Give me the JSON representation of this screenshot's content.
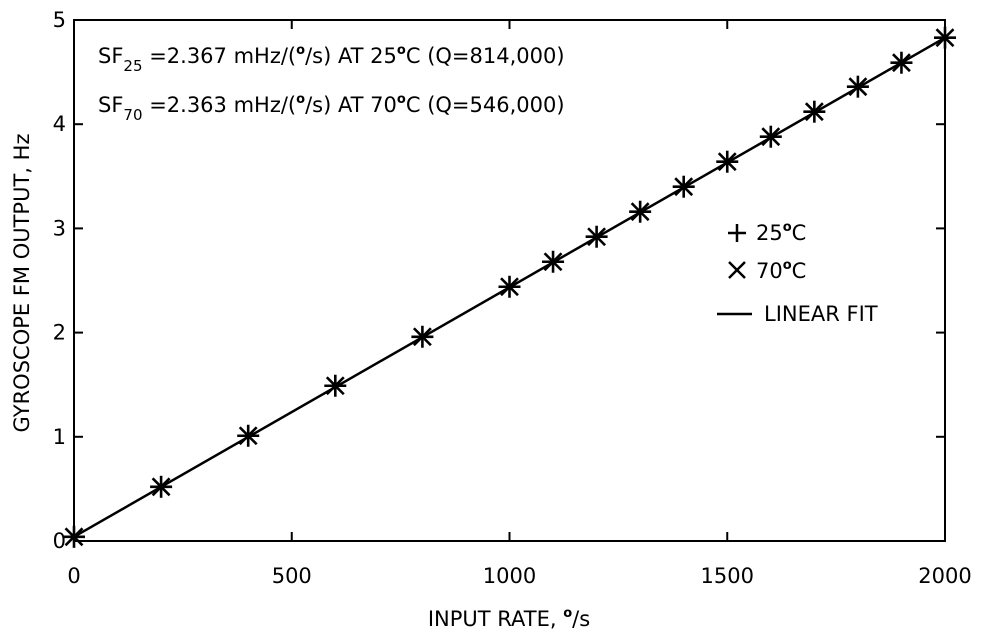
{
  "chart_data": {
    "type": "scatter",
    "xlabel_prefix": "INPUT RATE, ",
    "xlabel_unit_deg": "o",
    "xlabel_unit_rest": "/s",
    "ylabel": "GYROSCOPE FM OUTPUT, Hz",
    "xlim": [
      0,
      2000
    ],
    "ylim": [
      0,
      5
    ],
    "x_ticks": [
      "0",
      "500",
      "1000",
      "1500",
      "2000"
    ],
    "y_ticks": [
      "0",
      "1",
      "2",
      "3",
      "4",
      "5"
    ],
    "grid": false,
    "legend_position": "right",
    "annotations": [
      {
        "sf": "SF",
        "sub": "25",
        "text1": " =2.367 mHz/(",
        "deg1": "o",
        "text2": "/s) AT 25",
        "deg2": "o",
        "text3": "C (Q=814,000)"
      },
      {
        "sf": "SF",
        "sub": "70",
        "text1": " =2.363 mHz/(",
        "deg1": "o",
        "text2": "/s) AT 70",
        "deg2": "o",
        "text3": "C (Q=546,000)"
      }
    ],
    "series": [
      {
        "name": "25°C",
        "legend_main": "25",
        "legend_deg": "o",
        "legend_unit": "C",
        "marker": "plus",
        "x": [
          0,
          200,
          400,
          600,
          800,
          1000,
          1100,
          1200,
          1300,
          1400,
          1500,
          1600,
          1700,
          1800,
          1900,
          2000
        ],
        "y": [
          0.04,
          0.52,
          1.01,
          1.49,
          1.96,
          2.44,
          2.68,
          2.92,
          3.16,
          3.4,
          3.64,
          3.88,
          4.12,
          4.36,
          4.59,
          4.83
        ]
      },
      {
        "name": "70°C",
        "legend_main": "70",
        "legend_deg": "o",
        "legend_unit": "C",
        "marker": "x",
        "x": [
          0,
          200,
          400,
          600,
          800,
          1000,
          1100,
          1200,
          1300,
          1400,
          1500,
          1600,
          1700,
          1800,
          1900,
          2000
        ],
        "y": [
          0.04,
          0.52,
          1.01,
          1.49,
          1.96,
          2.44,
          2.68,
          2.92,
          3.16,
          3.4,
          3.64,
          3.88,
          4.12,
          4.36,
          4.59,
          4.83
        ]
      },
      {
        "name": "LINEAR FIT",
        "marker": "line",
        "x": [
          0,
          2000
        ],
        "y": [
          0.04,
          4.83
        ]
      }
    ]
  }
}
